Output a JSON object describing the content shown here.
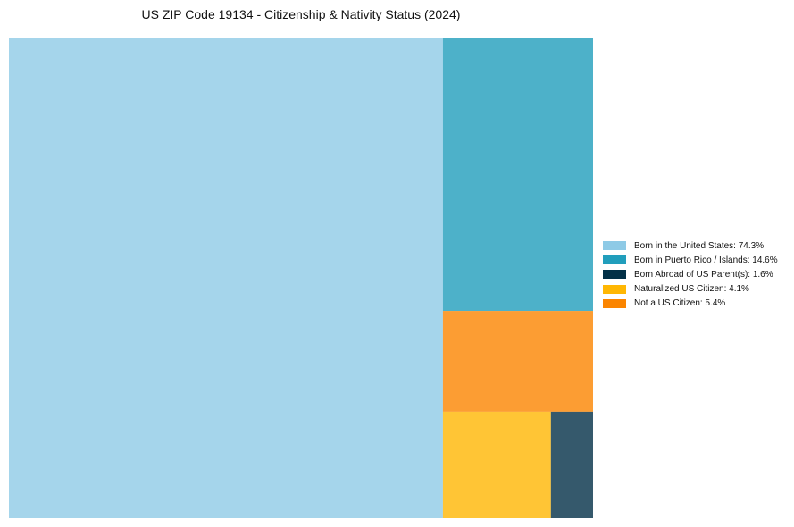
{
  "chart_data": {
    "type": "treemap",
    "title": "US ZIP Code 19134 - Citizenship & Nativity Status (2024)",
    "segments": [
      {
        "name": "Born in the United States",
        "value": 74.3,
        "color": "#8ecae6",
        "legend": "Born in the United States: 74.3%"
      },
      {
        "name": "Born in Puerto Rico / Islands",
        "value": 14.6,
        "color": "#219ebc",
        "legend": "Born in Puerto Rico / Islands: 14.6%"
      },
      {
        "name": "Born Abroad of US Parent(s)",
        "value": 1.6,
        "color": "#023047",
        "legend": "Born Abroad of US Parent(s): 1.6%"
      },
      {
        "name": "Naturalized US Citizen",
        "value": 4.1,
        "color": "#ffb703",
        "legend": "Naturalized US Citizen: 4.1%"
      },
      {
        "name": "Not a US Citizen",
        "value": 5.4,
        "color": "#fb8500",
        "legend": "Not a US Citizen: 5.4%"
      }
    ],
    "legend_position": "right",
    "tile_opacity": 0.8
  }
}
